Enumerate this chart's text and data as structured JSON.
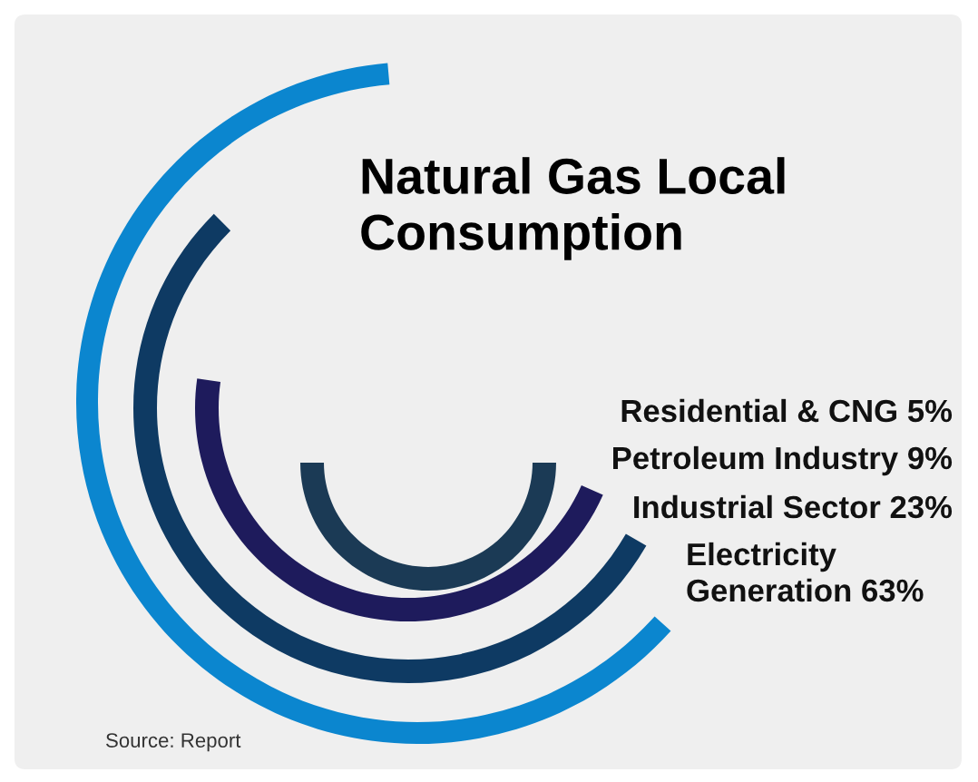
{
  "chart_data": {
    "type": "other",
    "title": "Natural Gas Local\nConsumption",
    "categories": [
      "Residential & CNG",
      "Petroleum Industry",
      "Industrial Sector",
      "Electricity\nGeneration"
    ],
    "values": [
      5,
      9,
      23,
      63
    ],
    "value_labels": [
      "5%",
      "9%",
      "23%",
      "63%"
    ],
    "colors": [
      "#1b3a55",
      "#1e1b5c",
      "#0e3a63",
      "#0b86cf"
    ],
    "annotations": [
      "Source: Report"
    ]
  }
}
